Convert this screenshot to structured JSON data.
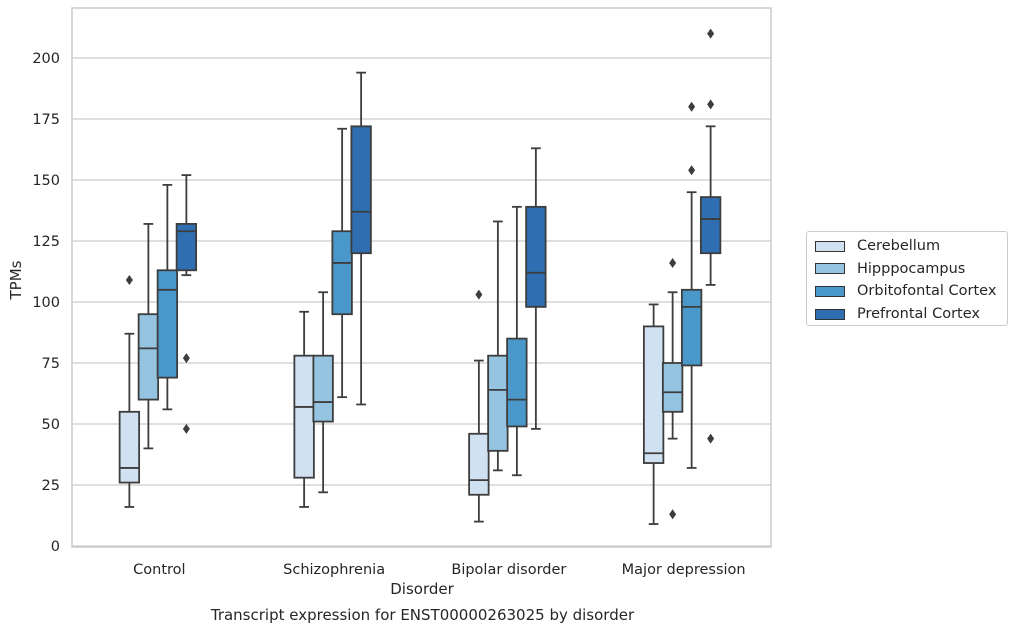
{
  "chart_data": {
    "type": "box",
    "xlabel": "Disorder",
    "ylabel": "TPMs",
    "caption": "Transcript expression for ENST00000263025 by disorder",
    "categories": [
      "Control",
      "Schizophrenia",
      "Bipolar disorder",
      "Major depression"
    ],
    "ylim": [
      0,
      220
    ],
    "yticks": [
      0,
      25,
      50,
      75,
      100,
      125,
      150,
      175,
      200
    ],
    "grid": "horizontal",
    "legend_position": "right",
    "series": [
      {
        "name": "Cerebellum",
        "color": "#d0e1f2",
        "boxes": [
          {
            "whislo": 16,
            "q1": 26,
            "med": 32,
            "q3": 55,
            "whishi": 87,
            "fliers": [
              109
            ]
          },
          {
            "whislo": 16,
            "q1": 28,
            "med": 57,
            "q3": 78,
            "whishi": 96,
            "fliers": []
          },
          {
            "whislo": 10,
            "q1": 21,
            "med": 27,
            "q3": 46,
            "whishi": 76,
            "fliers": [
              103
            ]
          },
          {
            "whislo": 9,
            "q1": 34,
            "med": 38,
            "q3": 90,
            "whishi": 99,
            "fliers": []
          }
        ]
      },
      {
        "name": "Hipppocampus",
        "color": "#94c4df",
        "boxes": [
          {
            "whislo": 40,
            "q1": 60,
            "med": 81,
            "q3": 95,
            "whishi": 132,
            "fliers": []
          },
          {
            "whislo": 22,
            "q1": 51,
            "med": 59,
            "q3": 78,
            "whishi": 104,
            "fliers": []
          },
          {
            "whislo": 31,
            "q1": 39,
            "med": 64,
            "q3": 78,
            "whishi": 133,
            "fliers": []
          },
          {
            "whislo": 44,
            "q1": 55,
            "med": 63,
            "q3": 75,
            "whishi": 104,
            "fliers": [
              116,
              13
            ]
          }
        ]
      },
      {
        "name": "Orbitofontal Cortex",
        "color": "#4a98c9",
        "boxes": [
          {
            "whislo": 56,
            "q1": 69,
            "med": 105,
            "q3": 113,
            "whishi": 148,
            "fliers": []
          },
          {
            "whislo": 61,
            "q1": 95,
            "med": 116,
            "q3": 129,
            "whishi": 171,
            "fliers": []
          },
          {
            "whislo": 29,
            "q1": 49,
            "med": 60,
            "q3": 85,
            "whishi": 139,
            "fliers": []
          },
          {
            "whislo": 32,
            "q1": 74,
            "med": 98,
            "q3": 105,
            "whishi": 145,
            "fliers": [
              154,
              180
            ]
          }
        ]
      },
      {
        "name": "Prefrontal Cortex",
        "color": "#2e6eb1",
        "boxes": [
          {
            "whislo": 111,
            "q1": 113,
            "med": 129,
            "q3": 132,
            "whishi": 152,
            "fliers": [
              77,
              48
            ]
          },
          {
            "whislo": 58,
            "q1": 120,
            "med": 137,
            "q3": 172,
            "whishi": 194,
            "fliers": []
          },
          {
            "whislo": 48,
            "q1": 98,
            "med": 112,
            "q3": 139,
            "whishi": 163,
            "fliers": []
          },
          {
            "whislo": 107,
            "q1": 120,
            "med": 134,
            "q3": 143,
            "whishi": 172,
            "fliers": [
              181,
              210,
              44
            ]
          }
        ]
      }
    ]
  }
}
